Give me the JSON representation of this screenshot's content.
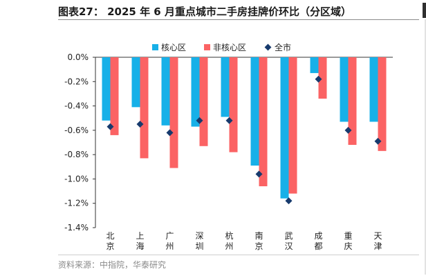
{
  "title": "图表27： 2025 年 6 月重点城市二手房挂牌价环比（分区域）",
  "source": "资料来源：中指院，华泰研究",
  "chart_data": {
    "type": "bar",
    "categories": [
      "北京",
      "上海",
      "广州",
      "深圳",
      "杭州",
      "南京",
      "武汉",
      "成都",
      "重庆",
      "天津"
    ],
    "series": [
      {
        "name": "核心区",
        "type": "bar",
        "color": "#17b0e8",
        "values": [
          -0.52,
          -0.41,
          -0.56,
          -0.57,
          -0.49,
          -0.89,
          -1.16,
          -0.13,
          -0.53,
          -0.53
        ]
      },
      {
        "name": "非核心区",
        "type": "bar",
        "color": "#fb6364",
        "values": [
          -0.64,
          -0.83,
          -0.91,
          -0.73,
          -0.78,
          -1.06,
          -1.12,
          -0.34,
          -0.72,
          -0.77
        ]
      },
      {
        "name": "全市",
        "type": "scatter",
        "marker": "diamond",
        "color": "#173a6d",
        "values": [
          -0.57,
          -0.55,
          -0.62,
          -0.52,
          -0.52,
          -0.96,
          -1.18,
          -0.18,
          -0.6,
          -0.69
        ]
      }
    ],
    "yticks": [
      "0.0%",
      "-0.2%",
      "-0.4%",
      "-0.6%",
      "-0.8%",
      "-1.0%",
      "-1.2%",
      "-1.4%"
    ],
    "ylim": [
      -1.4,
      0.0
    ],
    "grid": false,
    "legend_position": "top"
  }
}
